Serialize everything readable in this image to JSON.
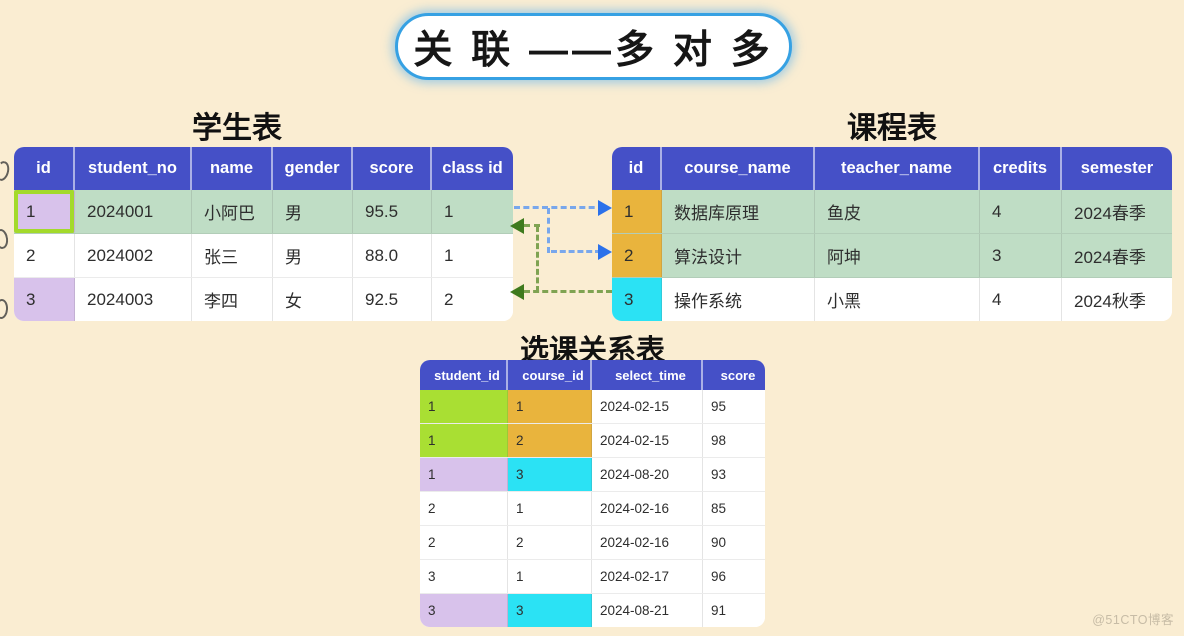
{
  "page": {
    "title": "关 联 ——多 对 多",
    "watermark": "@51CTO博客"
  },
  "student_table": {
    "title": "学生表",
    "headers": [
      "id",
      "student_no",
      "name",
      "gender",
      "score",
      "class id"
    ],
    "rows": [
      [
        "1",
        "2024001",
        "小阿巴",
        "男",
        "95.5",
        "1"
      ],
      [
        "2",
        "2024002",
        "张三",
        "男",
        "88.0",
        "1"
      ],
      [
        "3",
        "2024003",
        "李四",
        "女",
        "92.5",
        "2"
      ]
    ],
    "row_backgrounds": [
      "green",
      "white",
      "white"
    ],
    "highlight_cells": [
      {
        "row": 0,
        "col": 0,
        "color": "lavender",
        "selected": true
      },
      {
        "row": 2,
        "col": 0,
        "color": "lavender",
        "selected": false
      }
    ]
  },
  "course_table": {
    "title": "课程表",
    "headers": [
      "id",
      "course_name",
      "teacher_name",
      "credits",
      "semester"
    ],
    "rows": [
      [
        "1",
        "数据库原理",
        "鱼皮",
        "4",
        "2024春季"
      ],
      [
        "2",
        "算法设计",
        "阿坤",
        "3",
        "2024春季"
      ],
      [
        "3",
        "操作系统",
        "小黑",
        "4",
        "2024秋季"
      ]
    ],
    "row_backgrounds": [
      "green",
      "green",
      "white"
    ],
    "highlight_cells": [
      {
        "row": 0,
        "col": 0,
        "color": "orange",
        "selected": false
      },
      {
        "row": 1,
        "col": 0,
        "color": "orange",
        "selected": false
      },
      {
        "row": 2,
        "col": 0,
        "color": "cyan",
        "selected": false
      }
    ]
  },
  "relation_table": {
    "title": "选课关系表",
    "headers": [
      "student_id",
      "course_id",
      "select_time",
      "score"
    ],
    "rows": [
      [
        "1",
        "1",
        "2024-02-15",
        "95"
      ],
      [
        "1",
        "2",
        "2024-02-15",
        "98"
      ],
      [
        "1",
        "3",
        "2024-08-20",
        "93"
      ],
      [
        "2",
        "1",
        "2024-02-16",
        "85"
      ],
      [
        "2",
        "2",
        "2024-02-16",
        "90"
      ],
      [
        "3",
        "1",
        "2024-02-17",
        "96"
      ],
      [
        "3",
        "3",
        "2024-08-21",
        "91"
      ]
    ],
    "row_backgrounds": [
      "white",
      "white",
      "white",
      "white",
      "white",
      "white",
      "white"
    ],
    "highlight_cells": [
      {
        "row": 0,
        "col": 0,
        "color": "lime",
        "selected": false
      },
      {
        "row": 0,
        "col": 1,
        "color": "orange",
        "selected": false
      },
      {
        "row": 1,
        "col": 0,
        "color": "lime",
        "selected": false
      },
      {
        "row": 1,
        "col": 1,
        "color": "orange",
        "selected": false
      },
      {
        "row": 2,
        "col": 0,
        "color": "lavender",
        "selected": false
      },
      {
        "row": 2,
        "col": 1,
        "color": "cyan",
        "selected": false
      },
      {
        "row": 6,
        "col": 0,
        "color": "lavender",
        "selected": false
      },
      {
        "row": 6,
        "col": 1,
        "color": "cyan",
        "selected": false
      }
    ]
  },
  "connections": [
    {
      "color": "#2B71EA",
      "style": "dashed",
      "direction": "right",
      "from": "student_row_1",
      "to": [
        "course_row_1",
        "course_row_2"
      ]
    },
    {
      "color": "#3E7A1D",
      "style": "dashed",
      "direction": "left",
      "from": "course_row_3",
      "to": [
        "student_row_1",
        "student_row_3"
      ]
    }
  ],
  "colors": {
    "background": "#FAEDD2",
    "header": "#4550C7",
    "row_green": "#BFDDC5",
    "lavender": "#D8C2EB",
    "lime": "#A9DF33",
    "lime_border": "#A3DA2B",
    "orange": "#E9B43D",
    "cyan": "#2BE2F4",
    "arrow_blue": "#2B71EA",
    "arrow_blue_dash": "#78A7EC",
    "arrow_green": "#3E7A1D",
    "arrow_green_dash": "#7FA352",
    "title_border": "#36A1E3"
  }
}
